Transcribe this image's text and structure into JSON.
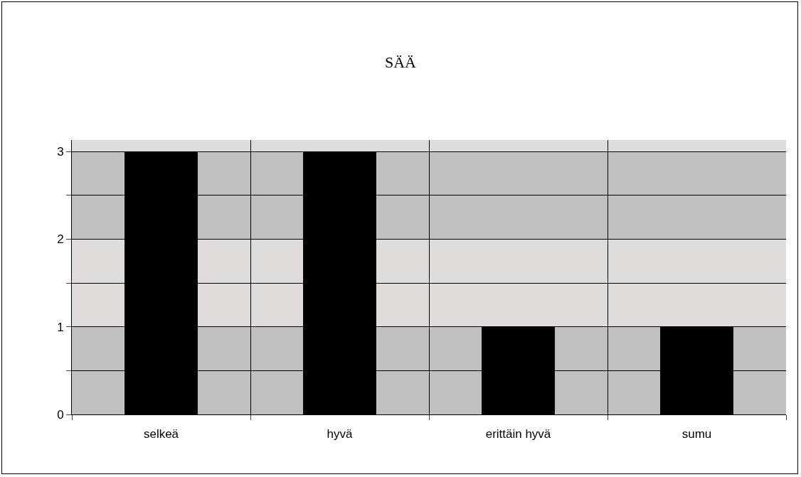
{
  "chart_data": {
    "type": "bar",
    "title": "SÄÄ",
    "categories": [
      "selkeä",
      "hyvä",
      "erittäin hyvä",
      "sumu"
    ],
    "values": [
      3,
      3,
      1,
      1
    ],
    "color": "#000000",
    "ylim": [
      0,
      3.13
    ],
    "yticks": [
      0,
      {
        "value": 0.5,
        "label": null
      },
      1,
      {
        "value": 1.5,
        "label": null
      },
      2,
      {
        "value": 2.5,
        "label": null
      },
      3
    ],
    "grid": true,
    "bands": [
      {
        "axis": "y",
        "from": 0,
        "to": 1,
        "color": "#c0c0c0"
      },
      {
        "axis": "y",
        "from": 2,
        "to": 3,
        "color": "#c0c0c0"
      }
    ]
  }
}
